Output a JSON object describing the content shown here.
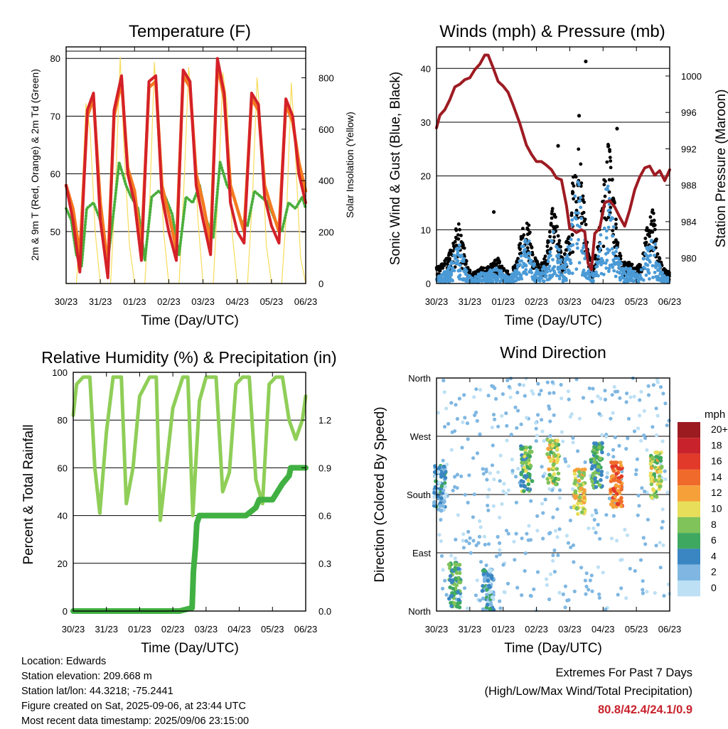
{
  "colors": {
    "temp_2m": "#d42128",
    "temp_9m": "#f47a20",
    "dewpoint": "#4aae3c",
    "solar": "#f7dc5a",
    "wind_sonic": "#4a9ad6",
    "wind_gust": "#000000",
    "pressure": "#9e1b22",
    "rh": "#8fce58",
    "precip": "#41b042",
    "extremes": "#c8232c"
  },
  "chart_data": [
    {
      "id": "temperature",
      "type": "line",
      "title": "Temperature (F)",
      "xlabel": "Time (Day/UTC)",
      "ylabel": "2m & 9m T (Red, Orange) & 2m Td (Green)",
      "y2label": "Solar Insolation (Yellow)",
      "x_ticks": [
        "30/23",
        "31/23",
        "01/23",
        "02/23",
        "03/23",
        "04/23",
        "05/23",
        "06/23"
      ],
      "xlim": [
        0,
        7
      ],
      "ylim": [
        41,
        82
      ],
      "y_ticks": [
        50,
        60,
        70,
        80
      ],
      "y2lim": [
        0,
        920
      ],
      "y2_ticks": [
        0,
        200,
        400,
        600,
        800
      ],
      "grid": true,
      "series": [
        {
          "key": "t2m",
          "color": "#d42128",
          "x": [
            0,
            0.2,
            0.4,
            0.62,
            0.8,
            1.0,
            1.22,
            1.4,
            1.62,
            1.8,
            2.0,
            2.2,
            2.42,
            2.62,
            2.8,
            3.0,
            3.22,
            3.42,
            3.62,
            3.8,
            4.0,
            4.22,
            4.42,
            4.62,
            4.8,
            5.0,
            5.2,
            5.42,
            5.62,
            5.8,
            6.0,
            6.22,
            6.42,
            6.62,
            6.8,
            7.0
          ],
          "y": [
            58,
            52,
            43,
            71,
            74,
            52,
            42,
            71,
            77,
            60,
            55,
            45,
            76,
            77,
            56,
            50,
            45,
            78,
            76,
            58,
            52,
            46,
            80,
            74,
            55,
            50,
            48,
            74,
            72,
            56,
            51,
            48,
            73,
            70,
            60,
            55
          ]
        },
        {
          "key": "t9m",
          "color": "#f47a20",
          "x": [
            0,
            0.2,
            0.4,
            0.62,
            0.8,
            1.0,
            1.22,
            1.4,
            1.62,
            1.8,
            2.0,
            2.2,
            2.42,
            2.62,
            2.8,
            3.0,
            3.22,
            3.42,
            3.62,
            3.8,
            4.0,
            4.22,
            4.42,
            4.62,
            4.8,
            5.0,
            5.2,
            5.42,
            5.62,
            5.8,
            6.0,
            6.22,
            6.42,
            6.62,
            6.8,
            7.0
          ],
          "y": [
            58,
            54,
            46,
            70,
            73,
            55,
            44,
            70,
            76,
            61,
            57,
            47,
            75,
            76,
            58,
            53,
            47,
            77,
            75,
            60,
            55,
            48,
            79,
            73,
            58,
            54,
            50,
            73,
            71,
            58,
            54,
            50,
            72,
            69,
            62,
            57
          ]
        },
        {
          "key": "td2m",
          "color": "#4aae3c",
          "x": [
            0,
            0.15,
            0.3,
            0.45,
            0.6,
            0.8,
            1.0,
            1.2,
            1.4,
            1.55,
            1.75,
            1.9,
            2.1,
            2.3,
            2.5,
            2.7,
            2.9,
            3.1,
            3.3,
            3.5,
            3.7,
            3.9,
            4.1,
            4.3,
            4.5,
            4.7,
            4.9,
            5.1,
            5.3,
            5.5,
            5.7,
            5.9,
            6.1,
            6.3,
            6.5,
            6.7,
            6.9,
            7.0
          ],
          "y": [
            54,
            52,
            46,
            44,
            54,
            55,
            52,
            44,
            54,
            62,
            58,
            56,
            54,
            45,
            56,
            57,
            56,
            53,
            46,
            56,
            55,
            58,
            52,
            49,
            62,
            58,
            56,
            52,
            51,
            57,
            56,
            55,
            52,
            50,
            55,
            54,
            56,
            54
          ]
        },
        {
          "key": "solar",
          "axis": "y2",
          "color": "#f7dc5a",
          "x": [
            0,
            0.3,
            0.45,
            0.58,
            0.7,
            0.85,
            1.0,
            1.3,
            1.45,
            1.58,
            1.7,
            1.85,
            2.0,
            2.3,
            2.45,
            2.58,
            2.7,
            2.85,
            3.0,
            3.3,
            3.45,
            3.58,
            3.7,
            3.85,
            4.0,
            4.3,
            4.45,
            4.58,
            4.7,
            4.85,
            5.0,
            5.3,
            5.45,
            5.58,
            5.7,
            5.85,
            6.0,
            6.3,
            6.45,
            6.58,
            6.7,
            6.85,
            7.0
          ],
          "y": [
            0,
            0,
            300,
            700,
            600,
            200,
            0,
            0,
            400,
            880,
            500,
            150,
            0,
            0,
            350,
            860,
            600,
            200,
            0,
            0,
            400,
            840,
            650,
            250,
            0,
            0,
            380,
            820,
            700,
            200,
            0,
            0,
            350,
            800,
            600,
            150,
            0,
            0,
            300,
            780,
            500,
            100,
            0
          ]
        }
      ]
    },
    {
      "id": "winds",
      "type": "scatter",
      "title": "Winds (mph) & Pressure (mb)",
      "xlabel": "Time (Day/UTC)",
      "ylabel": "Sonic Wind & Gust (Blue, Black)",
      "y2label": "Station Pressure (Maroon)",
      "x_ticks": [
        "30/23",
        "31/23",
        "01/23",
        "02/23",
        "03/23",
        "04/23",
        "05/23",
        "06/23"
      ],
      "xlim": [
        0,
        7
      ],
      "ylim": [
        0,
        44
      ],
      "y_ticks": [
        0,
        10,
        20,
        30,
        40
      ],
      "y2lim": [
        977.2,
        1003.2
      ],
      "y2_ticks": [
        980,
        984,
        988,
        992,
        996,
        1000
      ],
      "grid": true,
      "envelope": {
        "x": [
          0,
          0.2,
          0.35,
          0.5,
          0.65,
          0.8,
          0.95,
          1.1,
          1.3,
          1.5,
          1.7,
          1.85,
          2.0,
          2.2,
          2.4,
          2.55,
          2.75,
          2.9,
          3.1,
          3.3,
          3.5,
          3.65,
          3.8,
          3.95,
          4.1,
          4.25,
          4.4,
          4.55,
          4.7,
          4.85,
          5.0,
          5.15,
          5.3,
          5.45,
          5.6,
          5.8,
          6.0,
          6.15,
          6.3,
          6.5,
          6.65,
          6.8,
          7.0
        ],
        "gust": [
          3,
          4,
          5,
          8,
          12,
          8,
          3,
          2,
          3,
          3,
          4,
          5,
          3,
          2,
          4,
          10,
          12,
          6,
          3,
          6,
          15,
          10,
          4,
          10,
          20,
          27,
          18,
          6,
          3,
          8,
          18,
          28,
          18,
          8,
          4,
          4,
          3,
          4,
          10,
          14,
          6,
          3,
          2
        ],
        "sonic": [
          1,
          2,
          3,
          5,
          8,
          5,
          2,
          1,
          2,
          2,
          3,
          3,
          2,
          1,
          3,
          7,
          9,
          4,
          2,
          4,
          10,
          7,
          3,
          7,
          14,
          20,
          12,
          4,
          2,
          6,
          12,
          22,
          12,
          5,
          3,
          3,
          2,
          3,
          7,
          10,
          4,
          2,
          1
        ]
      },
      "gust_outliers": [
        {
          "x": 4.48,
          "y": 41.3
        },
        {
          "x": 3.65,
          "y": 25.6
        },
        {
          "x": 1.72,
          "y": 13.3
        },
        {
          "x": 5.42,
          "y": 28.8
        },
        {
          "x": 4.28,
          "y": 31.2
        }
      ],
      "pressure": {
        "x": [
          0,
          0.1,
          0.25,
          0.4,
          0.55,
          0.7,
          0.85,
          1.0,
          1.15,
          1.3,
          1.45,
          1.55,
          1.7,
          1.85,
          2.0,
          2.15,
          2.3,
          2.5,
          2.7,
          2.85,
          3.0,
          3.15,
          3.3,
          3.45,
          3.6,
          3.75,
          3.9,
          4.0,
          4.1,
          4.2,
          4.35,
          4.45,
          4.55,
          4.65,
          4.75,
          4.9,
          5.05,
          5.2,
          5.35,
          5.5,
          5.65,
          5.8,
          5.95,
          6.1,
          6.25,
          6.4,
          6.55,
          6.7,
          6.85,
          7.0
        ],
        "y": [
          994.3,
          995.7,
          996.3,
          997.4,
          998.8,
          999.1,
          999.6,
          999.8,
          1000.7,
          1001.3,
          1002.3,
          1002.3,
          1000.9,
          999.4,
          998.9,
          998.2,
          996.8,
          994.8,
          992.4,
          991.4,
          990.6,
          990.6,
          990.2,
          989.7,
          988.8,
          988.6,
          985.8,
          983.2,
          983.1,
          982.8,
          983.1,
          982.9,
          979.4,
          978.7,
          982.7,
          983.3,
          986.1,
          986.3,
          985.6,
          984.5,
          983.5,
          985.3,
          987.5,
          988.9,
          989.9,
          990.1,
          989.1,
          989.6,
          988.5,
          989.7
        ]
      }
    },
    {
      "id": "humidity",
      "type": "line",
      "title": "Relative Humidity (%) & Precipitation (in)",
      "xlabel": "Time (Day/UTC)",
      "ylabel": "Percent & Total Rainfall",
      "x_ticks": [
        "30/23",
        "31/23",
        "01/23",
        "02/23",
        "03/23",
        "04/23",
        "05/23",
        "06/23"
      ],
      "xlim": [
        0,
        7
      ],
      "ylim": [
        0,
        100
      ],
      "y_ticks": [
        0,
        20,
        40,
        60,
        80,
        100
      ],
      "y2lim": [
        0,
        1.5
      ],
      "y2_ticks": [
        "0.0",
        "0.3",
        "0.6",
        "0.9",
        "1.2"
      ],
      "grid": true,
      "series": [
        {
          "key": "rh",
          "color": "#8fce58",
          "x": [
            0,
            0.1,
            0.3,
            0.5,
            0.65,
            0.8,
            1.0,
            1.2,
            1.45,
            1.6,
            1.8,
            2.0,
            2.3,
            2.5,
            2.62,
            2.8,
            3.0,
            3.3,
            3.45,
            3.6,
            3.8,
            4.0,
            4.3,
            4.5,
            4.7,
            4.9,
            5.1,
            5.3,
            5.5,
            5.7,
            5.9,
            6.1,
            6.3,
            6.5,
            6.7,
            6.9,
            7.0
          ],
          "y": [
            82,
            95,
            98,
            98,
            60,
            41,
            75,
            98,
            98,
            45,
            60,
            90,
            98,
            98,
            38,
            60,
            85,
            98,
            98,
            40,
            88,
            98,
            98,
            50,
            58,
            95,
            98,
            98,
            55,
            45,
            95,
            98,
            98,
            80,
            72,
            80,
            90
          ]
        },
        {
          "key": "precip",
          "axis": "y2",
          "color": "#41b042",
          "x": [
            0,
            3.2,
            3.58,
            3.62,
            3.68,
            3.72,
            3.8,
            4.2,
            4.6,
            4.7,
            5.2,
            5.5,
            5.6,
            6.0,
            6.3,
            6.5,
            6.55,
            6.9,
            7.0
          ],
          "y": [
            0,
            0,
            0.02,
            0.25,
            0.4,
            0.55,
            0.6,
            0.6,
            0.6,
            0.6,
            0.6,
            0.65,
            0.7,
            0.7,
            0.8,
            0.85,
            0.9,
            0.9,
            0.9
          ]
        }
      ]
    },
    {
      "id": "wind_direction",
      "type": "scatter",
      "title": "Wind Direction",
      "xlabel": "Time (Day/UTC)",
      "ylabel": "Direction (Colored By Speed)",
      "x_ticks": [
        "30/23",
        "31/23",
        "01/23",
        "02/23",
        "03/23",
        "04/23",
        "05/23",
        "06/23"
      ],
      "xlim": [
        0,
        7
      ],
      "y_ticks": [
        "North",
        "East",
        "South",
        "West",
        "North"
      ],
      "ylim": [
        0,
        360
      ],
      "grid": true,
      "legend": {
        "title": "mph",
        "labels": [
          "20+",
          "18",
          "16",
          "14",
          "12",
          "10",
          "8",
          "6",
          "4",
          "2",
          "0"
        ],
        "colors": [
          "#9b1b20",
          "#c8232c",
          "#e23a2a",
          "#f06a2b",
          "#f6a03a",
          "#e8de5a",
          "#7fc35a",
          "#3fa860",
          "#3a86c2",
          "#7fb7e2",
          "#bde0f4"
        ],
        "placement": "right"
      },
      "clusters": [
        {
          "x": 0.1,
          "dir": 190,
          "speed": 3
        },
        {
          "x": 0.55,
          "dir": 40,
          "speed": 6
        },
        {
          "x": 1.55,
          "dir": 30,
          "speed": 3
        },
        {
          "x": 2.7,
          "dir": 220,
          "speed": 7
        },
        {
          "x": 3.5,
          "dir": 230,
          "speed": 9
        },
        {
          "x": 4.3,
          "dir": 185,
          "speed": 10
        },
        {
          "x": 4.8,
          "dir": 225,
          "speed": 6
        },
        {
          "x": 5.4,
          "dir": 195,
          "speed": 14
        },
        {
          "x": 6.6,
          "dir": 210,
          "speed": 9
        }
      ]
    }
  ],
  "footer": {
    "location": "Location: Edwards",
    "elevation": "Station elevation: 209.668 m",
    "latlon": "Station lat/lon: 44.3218; -75.2441",
    "created": "Figure created on Sat, 2025-09-06, at 23:44 UTC",
    "recent": "Most recent data timestamp: 2025/09/06 23:15:00"
  },
  "extremes": {
    "title": "Extremes For Past 7 Days",
    "subtitle": "(High/Low/Max Wind/Total Precipitation)",
    "value": "80.8/42.4/24.1/0.9"
  }
}
